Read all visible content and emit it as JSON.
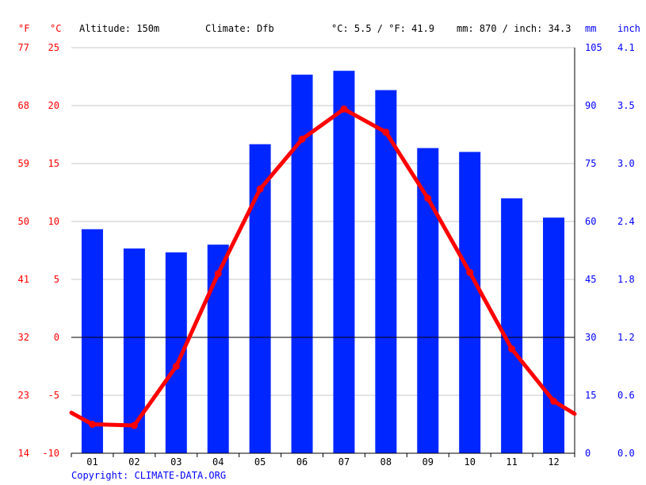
{
  "header": {
    "unit_f": "°F",
    "unit_c": "°C",
    "altitude": "Altitude: 150m",
    "climate": "Climate: Dfb",
    "avg_temp": "°C: 5.5 / °F: 41.9",
    "precip_total": "mm: 870 / inch: 34.3",
    "unit_mm": "mm",
    "unit_inch": "inch"
  },
  "copyright": "Copyright: CLIMATE-DATA.ORG",
  "colors": {
    "temperature": "#ff0000",
    "precipitation": "#0026ff",
    "grid": "#c8c8c8",
    "zero_line": "#000000"
  },
  "chart_data": {
    "type": "bar+line",
    "categories": [
      "01",
      "02",
      "03",
      "04",
      "05",
      "06",
      "07",
      "08",
      "09",
      "10",
      "11",
      "12"
    ],
    "series": [
      {
        "name": "mm",
        "type": "bar",
        "axis": "right",
        "values": [
          58,
          53,
          52,
          54,
          80,
          98,
          99,
          94,
          79,
          78,
          66,
          61
        ]
      },
      {
        "name": "°C",
        "type": "line",
        "axis": "left",
        "values": [
          -7.5,
          -7.6,
          -2.5,
          5.5,
          12.8,
          17.1,
          19.7,
          17.7,
          12.0,
          5.6,
          -1.0,
          -5.5
        ],
        "edge_values": [
          -6.5,
          -6.6
        ]
      }
    ],
    "y_left_celsius": {
      "ticks": [
        25,
        20,
        15,
        10,
        5,
        0,
        -5,
        -10
      ],
      "ylim": [
        -10,
        25
      ]
    },
    "y_left_fahrenheit": {
      "ticks": [
        77,
        68,
        59,
        50,
        41,
        32,
        23,
        14
      ]
    },
    "y_right_mm": {
      "ticks": [
        105,
        90,
        75,
        60,
        45,
        30,
        15,
        0
      ],
      "ylim": [
        0,
        105
      ]
    },
    "y_right_inch": {
      "ticks": [
        "4.1",
        "3.5",
        "3.0",
        "2.4",
        "1.8",
        "1.2",
        "0.6",
        "0.0"
      ]
    },
    "grid": true
  }
}
